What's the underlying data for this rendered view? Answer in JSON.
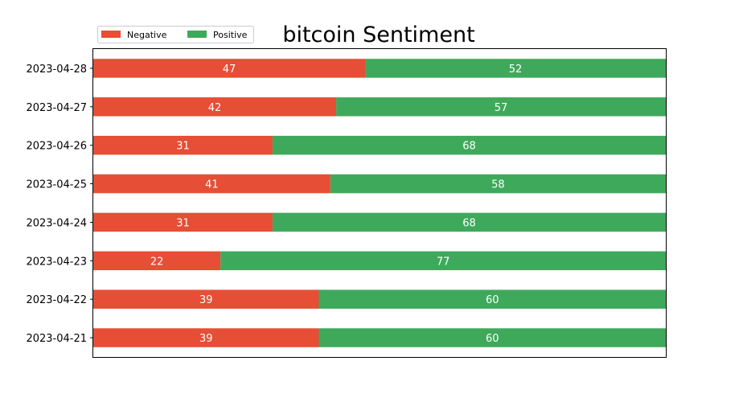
{
  "chart_data": {
    "type": "bar",
    "orientation": "horizontal",
    "stacked": true,
    "title": "bitcoin Sentiment",
    "xlabel": "",
    "ylabel": "",
    "categories": [
      "2023-04-21",
      "2023-04-22",
      "2023-04-23",
      "2023-04-24",
      "2023-04-25",
      "2023-04-26",
      "2023-04-27",
      "2023-04-28"
    ],
    "series": [
      {
        "name": "Negative",
        "color": "#e64e35",
        "values": [
          39,
          39,
          22,
          31,
          41,
          31,
          42,
          47
        ]
      },
      {
        "name": "Positive",
        "color": "#3fa95b",
        "values": [
          60,
          60,
          77,
          68,
          58,
          68,
          57,
          52
        ]
      }
    ],
    "xaxis_visible": false,
    "grid": false,
    "legend_position": "top-left"
  }
}
